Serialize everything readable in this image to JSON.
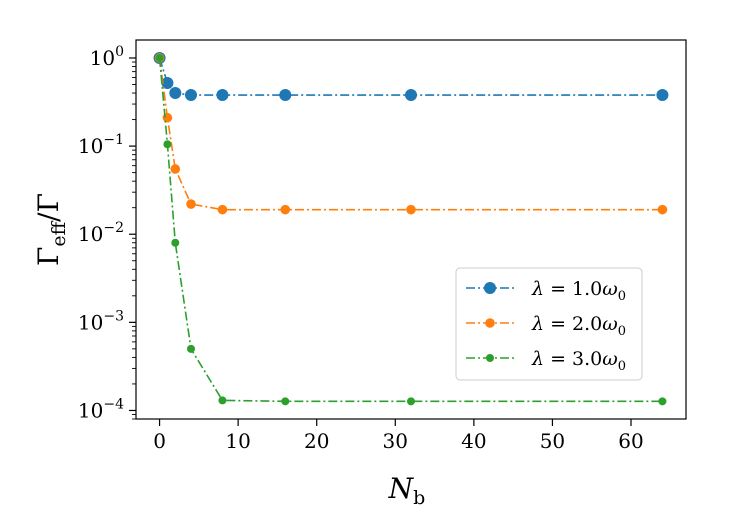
{
  "chart_data": {
    "type": "line",
    "title": "",
    "xlabel": "N_b",
    "ylabel": "Γ_eff/Γ",
    "yscale": "log",
    "xlim": [
      -3,
      67
    ],
    "ylim": [
      8e-05,
      1.6
    ],
    "x_ticks": [
      0,
      10,
      20,
      30,
      40,
      50,
      60
    ],
    "y_ticks": [
      {
        "value": 1,
        "base": "10",
        "exp": "0"
      },
      {
        "value": 0.1,
        "base": "10",
        "exp": "−1"
      },
      {
        "value": 0.01,
        "base": "10",
        "exp": "−2"
      },
      {
        "value": 0.001,
        "base": "10",
        "exp": "−3"
      },
      {
        "value": 0.0001,
        "base": "10",
        "exp": "−4"
      }
    ],
    "grid": false,
    "legend_position": "lower-right",
    "series": [
      {
        "name": "λ = 1.0ω0",
        "legend_main": "λ = 1.0",
        "legend_omega": "ω",
        "legend_sub": "0",
        "color": "#1f77b4",
        "marker_size": "large",
        "x": [
          0,
          1,
          2,
          4,
          8,
          16,
          32,
          64
        ],
        "values": [
          1.0,
          0.52,
          0.4,
          0.38,
          0.38,
          0.38,
          0.38,
          0.38
        ]
      },
      {
        "name": "λ = 2.0ω0",
        "legend_main": "λ = 2.0",
        "legend_omega": "ω",
        "legend_sub": "0",
        "color": "#ff7f0e",
        "marker_size": "medium",
        "x": [
          0,
          1,
          2,
          4,
          8,
          16,
          32,
          64
        ],
        "values": [
          1.0,
          0.21,
          0.055,
          0.022,
          0.019,
          0.019,
          0.019,
          0.019
        ]
      },
      {
        "name": "λ = 3.0ω0",
        "legend_main": "λ = 3.0",
        "legend_omega": "ω",
        "legend_sub": "0",
        "color": "#2ca02c",
        "marker_size": "small",
        "x": [
          0,
          1,
          2,
          4,
          8,
          16,
          32,
          64
        ],
        "values": [
          1.0,
          0.105,
          0.008,
          0.0005,
          0.00013,
          0.000127,
          0.000127,
          0.000127
        ]
      }
    ]
  }
}
